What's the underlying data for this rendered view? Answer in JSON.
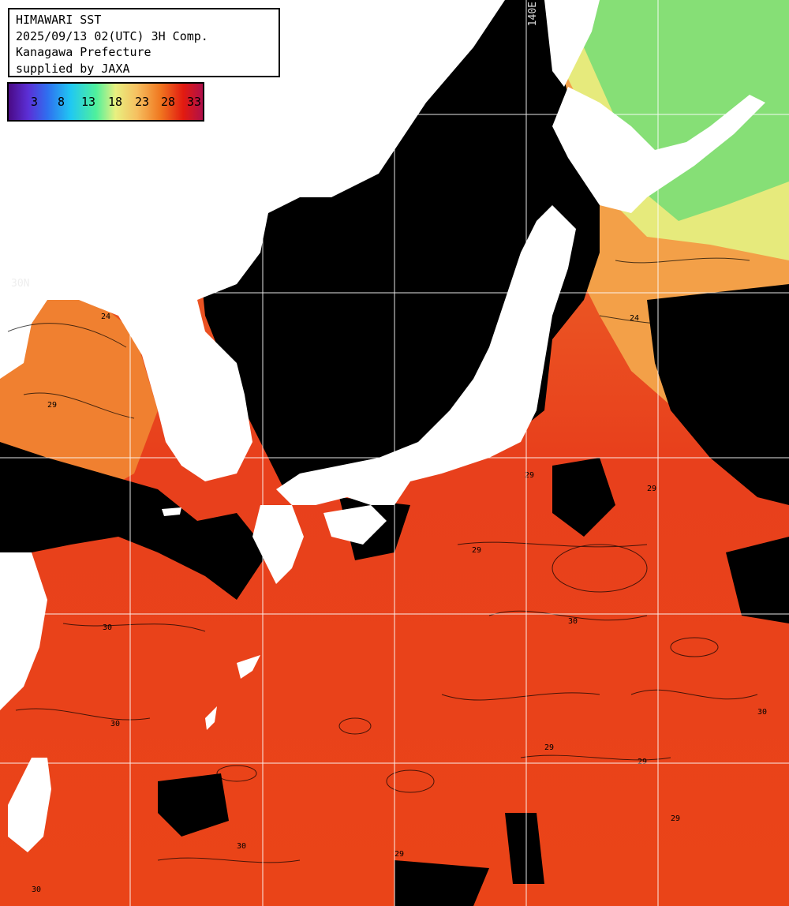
{
  "header": {
    "line1": "HIMAWARI SST",
    "line2": "2025/09/13 02(UTC) 3H Comp.",
    "line3": "Kanagawa Prefecture",
    "line4": "supplied by JAXA"
  },
  "colorbar": {
    "ticks": [
      "3",
      "8",
      "13",
      "18",
      "23",
      "28",
      "33"
    ]
  },
  "graticule": {
    "lon_label": "140E",
    "lat_label": "30N"
  },
  "contour_labels": [
    "24",
    "24",
    "29",
    "29",
    "29",
    "29",
    "30",
    "30",
    "30",
    "29",
    "29",
    "30",
    "29",
    "29",
    "30",
    "30"
  ],
  "colors": {
    "land": "#ffffff",
    "cloud": "#000000",
    "warm_sea": "#e8401c",
    "mid_sea": "#f07a30",
    "cool_sea": "#f2c060",
    "cold_sea": "#8ee070",
    "grid": "#ffffff"
  }
}
